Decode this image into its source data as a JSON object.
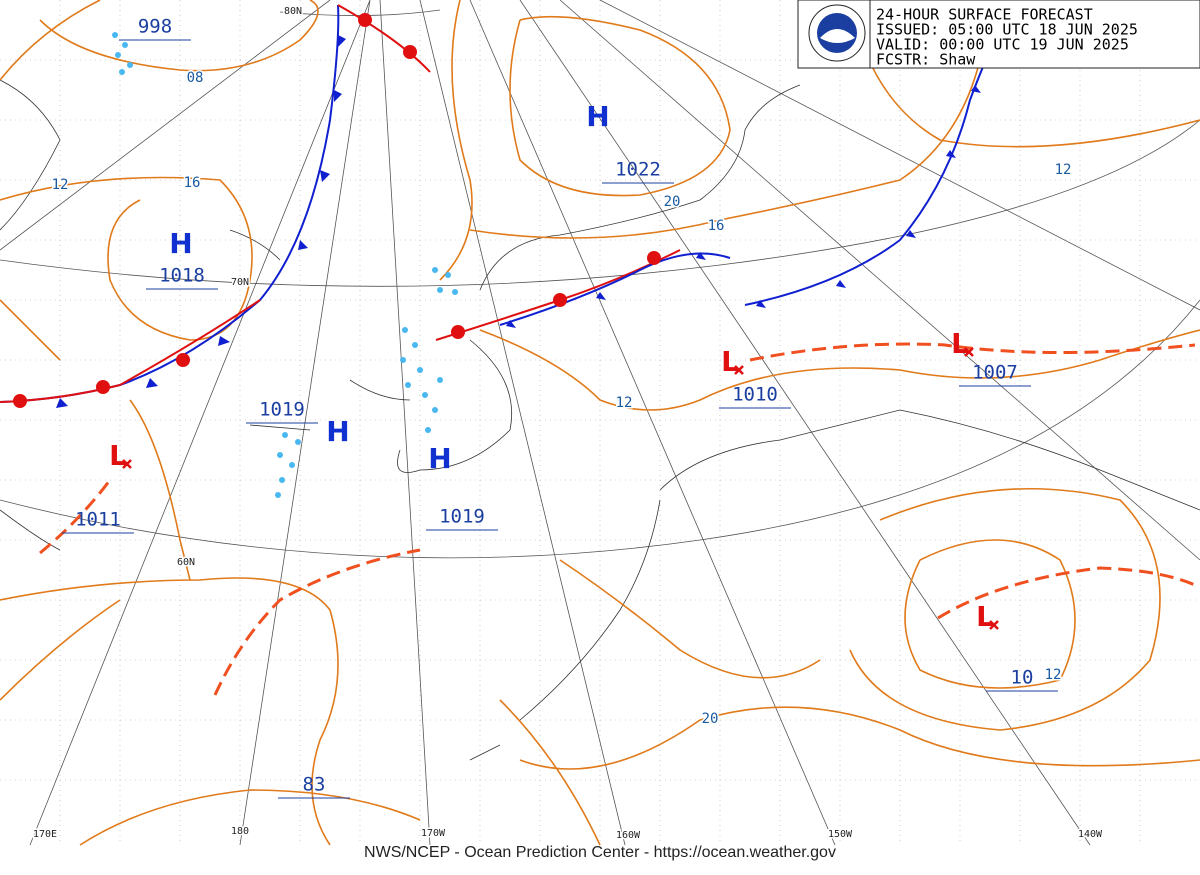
{
  "header": {
    "title": "24-HOUR SURFACE FORECAST",
    "issued": "ISSUED: 05:00 UTC 18 JUN 2025",
    "valid": "VALID:  00:00 UTC 19 JUN 2025",
    "forecaster": "FCSTR:  Shaw"
  },
  "systems": [
    {
      "symbol": "H",
      "pressure": "1022"
    },
    {
      "symbol": "H",
      "pressure": "1018"
    },
    {
      "symbol": "H",
      "pressure": "1019"
    },
    {
      "symbol": "H",
      "pressure": "1019"
    },
    {
      "symbol": "L",
      "pressure": "1011"
    },
    {
      "symbol": "L",
      "pressure": "1010"
    },
    {
      "symbol": "L",
      "pressure": "1007"
    },
    {
      "symbol": "L",
      "pressure": "10"
    },
    {
      "pressure": "998"
    },
    {
      "pressure": "83"
    }
  ],
  "isobar_labels": [
    "08",
    "12",
    "16",
    "20",
    "16",
    "12",
    "12",
    "20",
    "12"
  ],
  "latitude_labels": [
    "80N",
    "70N",
    "60N"
  ],
  "longitude_labels": [
    "170E",
    "180",
    "170W",
    "160W",
    "150W",
    "140W"
  ],
  "footer": "NWS/NCEP - Ocean Prediction Center - https://ocean.weather.gov"
}
